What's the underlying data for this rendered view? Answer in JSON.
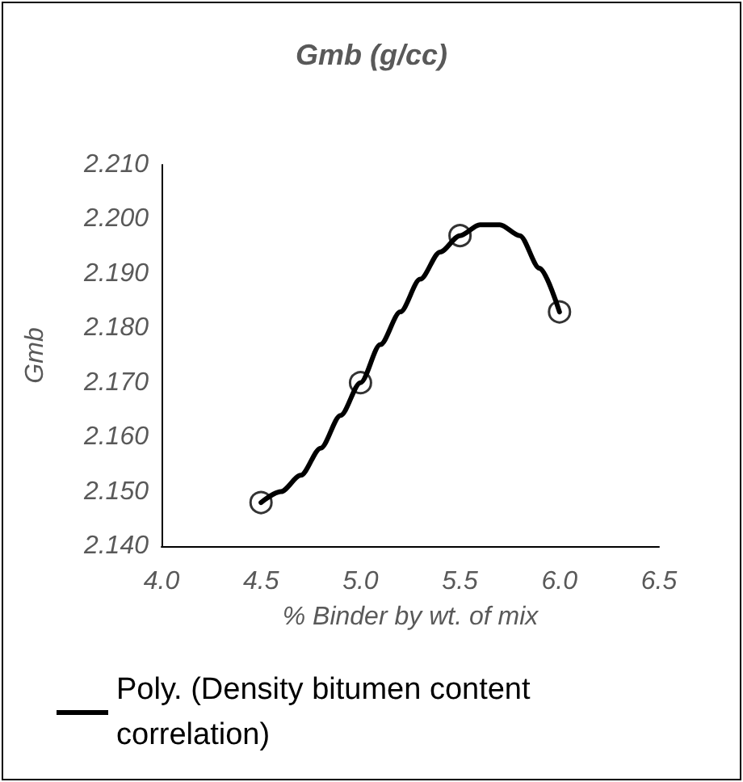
{
  "chart_data": {
    "type": "scatter",
    "title": "Gmb (g/cc)",
    "xlabel": "% Binder by wt. of mix",
    "ylabel": "Gmb",
    "xlim": [
      4.0,
      6.5
    ],
    "xticks": [
      {
        "value": 4.0,
        "label": "4.0"
      },
      {
        "value": 4.5,
        "label": "4.5"
      },
      {
        "value": 5.0,
        "label": "5.0"
      },
      {
        "value": 5.5,
        "label": "5.5"
      },
      {
        "value": 6.0,
        "label": "6.0"
      },
      {
        "value": 6.5,
        "label": "6.5"
      }
    ],
    "ylim": [
      2.14,
      2.21
    ],
    "yticks": [
      {
        "value": 2.14,
        "label": "2.140"
      },
      {
        "value": 2.15,
        "label": "2.150"
      },
      {
        "value": 2.16,
        "label": "2.160"
      },
      {
        "value": 2.17,
        "label": "2.170"
      },
      {
        "value": 2.18,
        "label": "2.180"
      },
      {
        "value": 2.19,
        "label": "2.190"
      },
      {
        "value": 2.2,
        "label": "2.200"
      },
      {
        "value": 2.21,
        "label": "2.210"
      }
    ],
    "grid": false,
    "legend": "bottom",
    "series": [
      {
        "type": "scatter",
        "marker": "circle",
        "color": "#000000",
        "x": [
          4.5,
          5.0,
          5.5,
          6.0
        ],
        "values": [
          2.148,
          2.17,
          2.197,
          2.183
        ]
      },
      {
        "type": "line",
        "name": "Poly. (Density bitumen content correlation)",
        "marker": "none",
        "color": "#000000",
        "line_style": "solid",
        "x": [
          4.5,
          4.6,
          4.7,
          4.8,
          4.9,
          5.0,
          5.1,
          5.2,
          5.3,
          5.4,
          5.5,
          5.6,
          5.7,
          5.8,
          5.9,
          6.0
        ],
        "values": [
          2.148,
          2.15,
          2.153,
          2.158,
          2.164,
          2.17,
          2.177,
          2.183,
          2.189,
          2.194,
          2.197,
          2.199,
          2.199,
          2.197,
          2.191,
          2.183
        ]
      }
    ]
  }
}
